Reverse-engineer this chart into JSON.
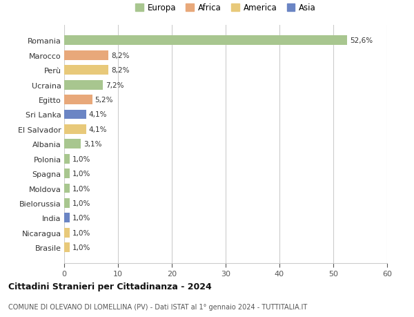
{
  "categories": [
    "Brasile",
    "Nicaragua",
    "India",
    "Bielorussia",
    "Moldova",
    "Spagna",
    "Polonia",
    "Albania",
    "El Salvador",
    "Sri Lanka",
    "Egitto",
    "Ucraina",
    "Perù",
    "Marocco",
    "Romania"
  ],
  "values": [
    1.0,
    1.0,
    1.0,
    1.0,
    1.0,
    1.0,
    1.0,
    3.1,
    4.1,
    4.1,
    5.2,
    7.2,
    8.2,
    8.2,
    52.6
  ],
  "labels": [
    "1,0%",
    "1,0%",
    "1,0%",
    "1,0%",
    "1,0%",
    "1,0%",
    "1,0%",
    "3,1%",
    "4,1%",
    "4,1%",
    "5,2%",
    "7,2%",
    "8,2%",
    "8,2%",
    "52,6%"
  ],
  "colors": [
    "#e8c97a",
    "#e8c97a",
    "#6b85c4",
    "#a8c68f",
    "#a8c68f",
    "#a8c68f",
    "#a8c68f",
    "#a8c68f",
    "#e8c97a",
    "#6b85c4",
    "#e8a87a",
    "#a8c68f",
    "#e8c97a",
    "#e8a87a",
    "#a8c68f"
  ],
  "legend_labels": [
    "Europa",
    "Africa",
    "America",
    "Asia"
  ],
  "legend_colors": [
    "#a8c68f",
    "#e8a87a",
    "#e8c97a",
    "#6b85c4"
  ],
  "title": "Cittadini Stranieri per Cittadinanza - 2024",
  "subtitle": "COMUNE DI OLEVANO DI LOMELLINA (PV) - Dati ISTAT al 1° gennaio 2024 - TUTTITALIA.IT",
  "xlim": [
    0,
    60
  ],
  "xticks": [
    0,
    10,
    20,
    30,
    40,
    50,
    60
  ],
  "background_color": "#ffffff",
  "grid_color": "#cccccc"
}
